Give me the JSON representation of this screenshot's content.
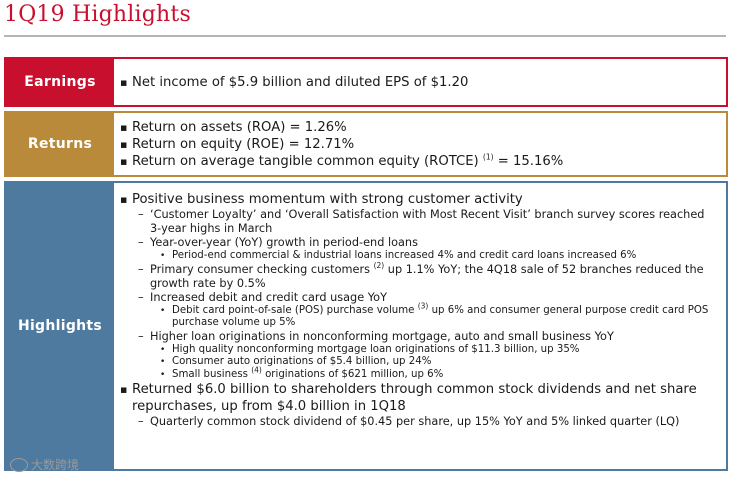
{
  "title": "1Q19 Highlights",
  "earnings": {
    "label": "Earnings",
    "line1": "Net income of $5.9 billion and diluted EPS of $1.20"
  },
  "returns": {
    "label": "Returns",
    "line1": "Return on assets (ROA) = 1.26%",
    "line2": "Return on equity (ROE) = 12.71%",
    "line3_text": "Return on average tangible common equity (ROTCE)",
    "line3_sup": "(1)",
    "line3_value": "= 15.16%"
  },
  "highlights": {
    "label": "Highlights",
    "b1": "Positive business momentum with strong customer activity",
    "b1_s1": "‘Customer Loyalty’ and ‘Overall Satisfaction with Most Recent Visit’ branch survey scores reached 3-year highs in March",
    "b1_s2": "Year-over-year (YoY) growth in period-end loans",
    "b1_s2_t1": "Period-end commercial & industrial loans increased 4% and credit card loans increased 6%",
    "b1_s3_a": "Primary consumer checking customers",
    "b1_s3_sup": "(2)",
    "b1_s3_b": "up 1.1% YoY; the 4Q18 sale of 52 branches reduced the growth rate by 0.5%",
    "b1_s4": "Increased debit and credit card usage YoY",
    "b1_s4_t1_a": "Debit card point-of-sale (POS) purchase volume",
    "b1_s4_t1_sup": "(3)",
    "b1_s4_t1_b": "up 6% and consumer general purpose credit card POS purchase volume up 5%",
    "b1_s5": "Higher loan originations in nonconforming mortgage, auto and small business YoY",
    "b1_s5_t1": "High quality nonconforming mortgage loan originations of $11.3 billion, up 35%",
    "b1_s5_t2": "Consumer auto originations of $5.4 billion, up 24%",
    "b1_s5_t3_a": "Small business",
    "b1_s5_t3_sup": "(4)",
    "b1_s5_t3_b": "originations of $621 million, up 6%",
    "b2": "Returned $6.0 billion to shareholders through common stock dividends and net share repurchases, up from $4.0 billion in 1Q18",
    "b2_s1": "Quarterly common stock dividend of $0.45 per share, up 15% YoY and 5% linked quarter (LQ)"
  },
  "watermark": "大数跨境",
  "colors": {
    "red": "#c8102e",
    "gold": "#b88a3a",
    "blue": "#4e7aa0"
  }
}
